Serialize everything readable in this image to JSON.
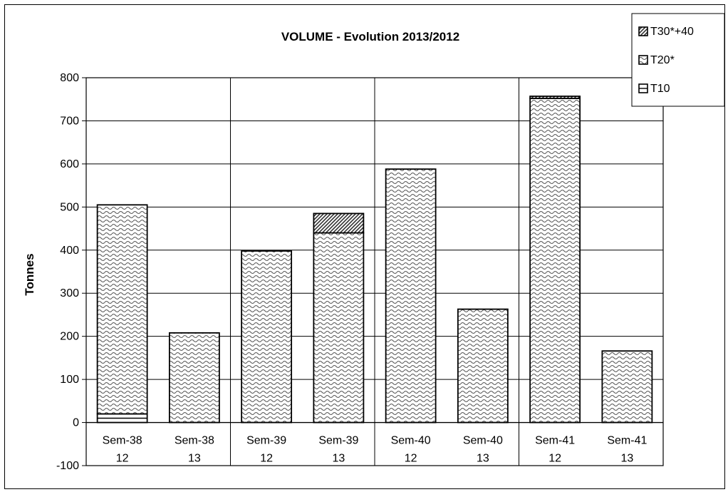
{
  "chart_data": {
    "type": "bar",
    "stacked": true,
    "title": "VOLUME - Evolution 2013/2012",
    "ylabel": "Tonnes",
    "xlabel": "",
    "ylim": [
      -100,
      800
    ],
    "ytick_step": 100,
    "grid": true,
    "legend_position": "top-right",
    "categories": [
      {
        "line1": "Sem-38",
        "line2": "12"
      },
      {
        "line1": "Sem-38",
        "line2": "13"
      },
      {
        "line1": "Sem-39",
        "line2": "12"
      },
      {
        "line1": "Sem-39",
        "line2": "13"
      },
      {
        "line1": "Sem-40",
        "line2": "12"
      },
      {
        "line1": "Sem-40",
        "line2": "13"
      },
      {
        "line1": "Sem-41",
        "line2": "12"
      },
      {
        "line1": "Sem-41",
        "line2": "13"
      }
    ],
    "series": [
      {
        "name": "T10",
        "pattern": "horizontal",
        "values": [
          20,
          0,
          0,
          0,
          0,
          0,
          0,
          0
        ]
      },
      {
        "name": "T20*",
        "pattern": "wave",
        "values": [
          485,
          208,
          398,
          440,
          588,
          263,
          752,
          166
        ]
      },
      {
        "name": "T30*+40",
        "pattern": "diagonal",
        "values": [
          0,
          0,
          0,
          45,
          0,
          0,
          5,
          0
        ]
      }
    ]
  }
}
